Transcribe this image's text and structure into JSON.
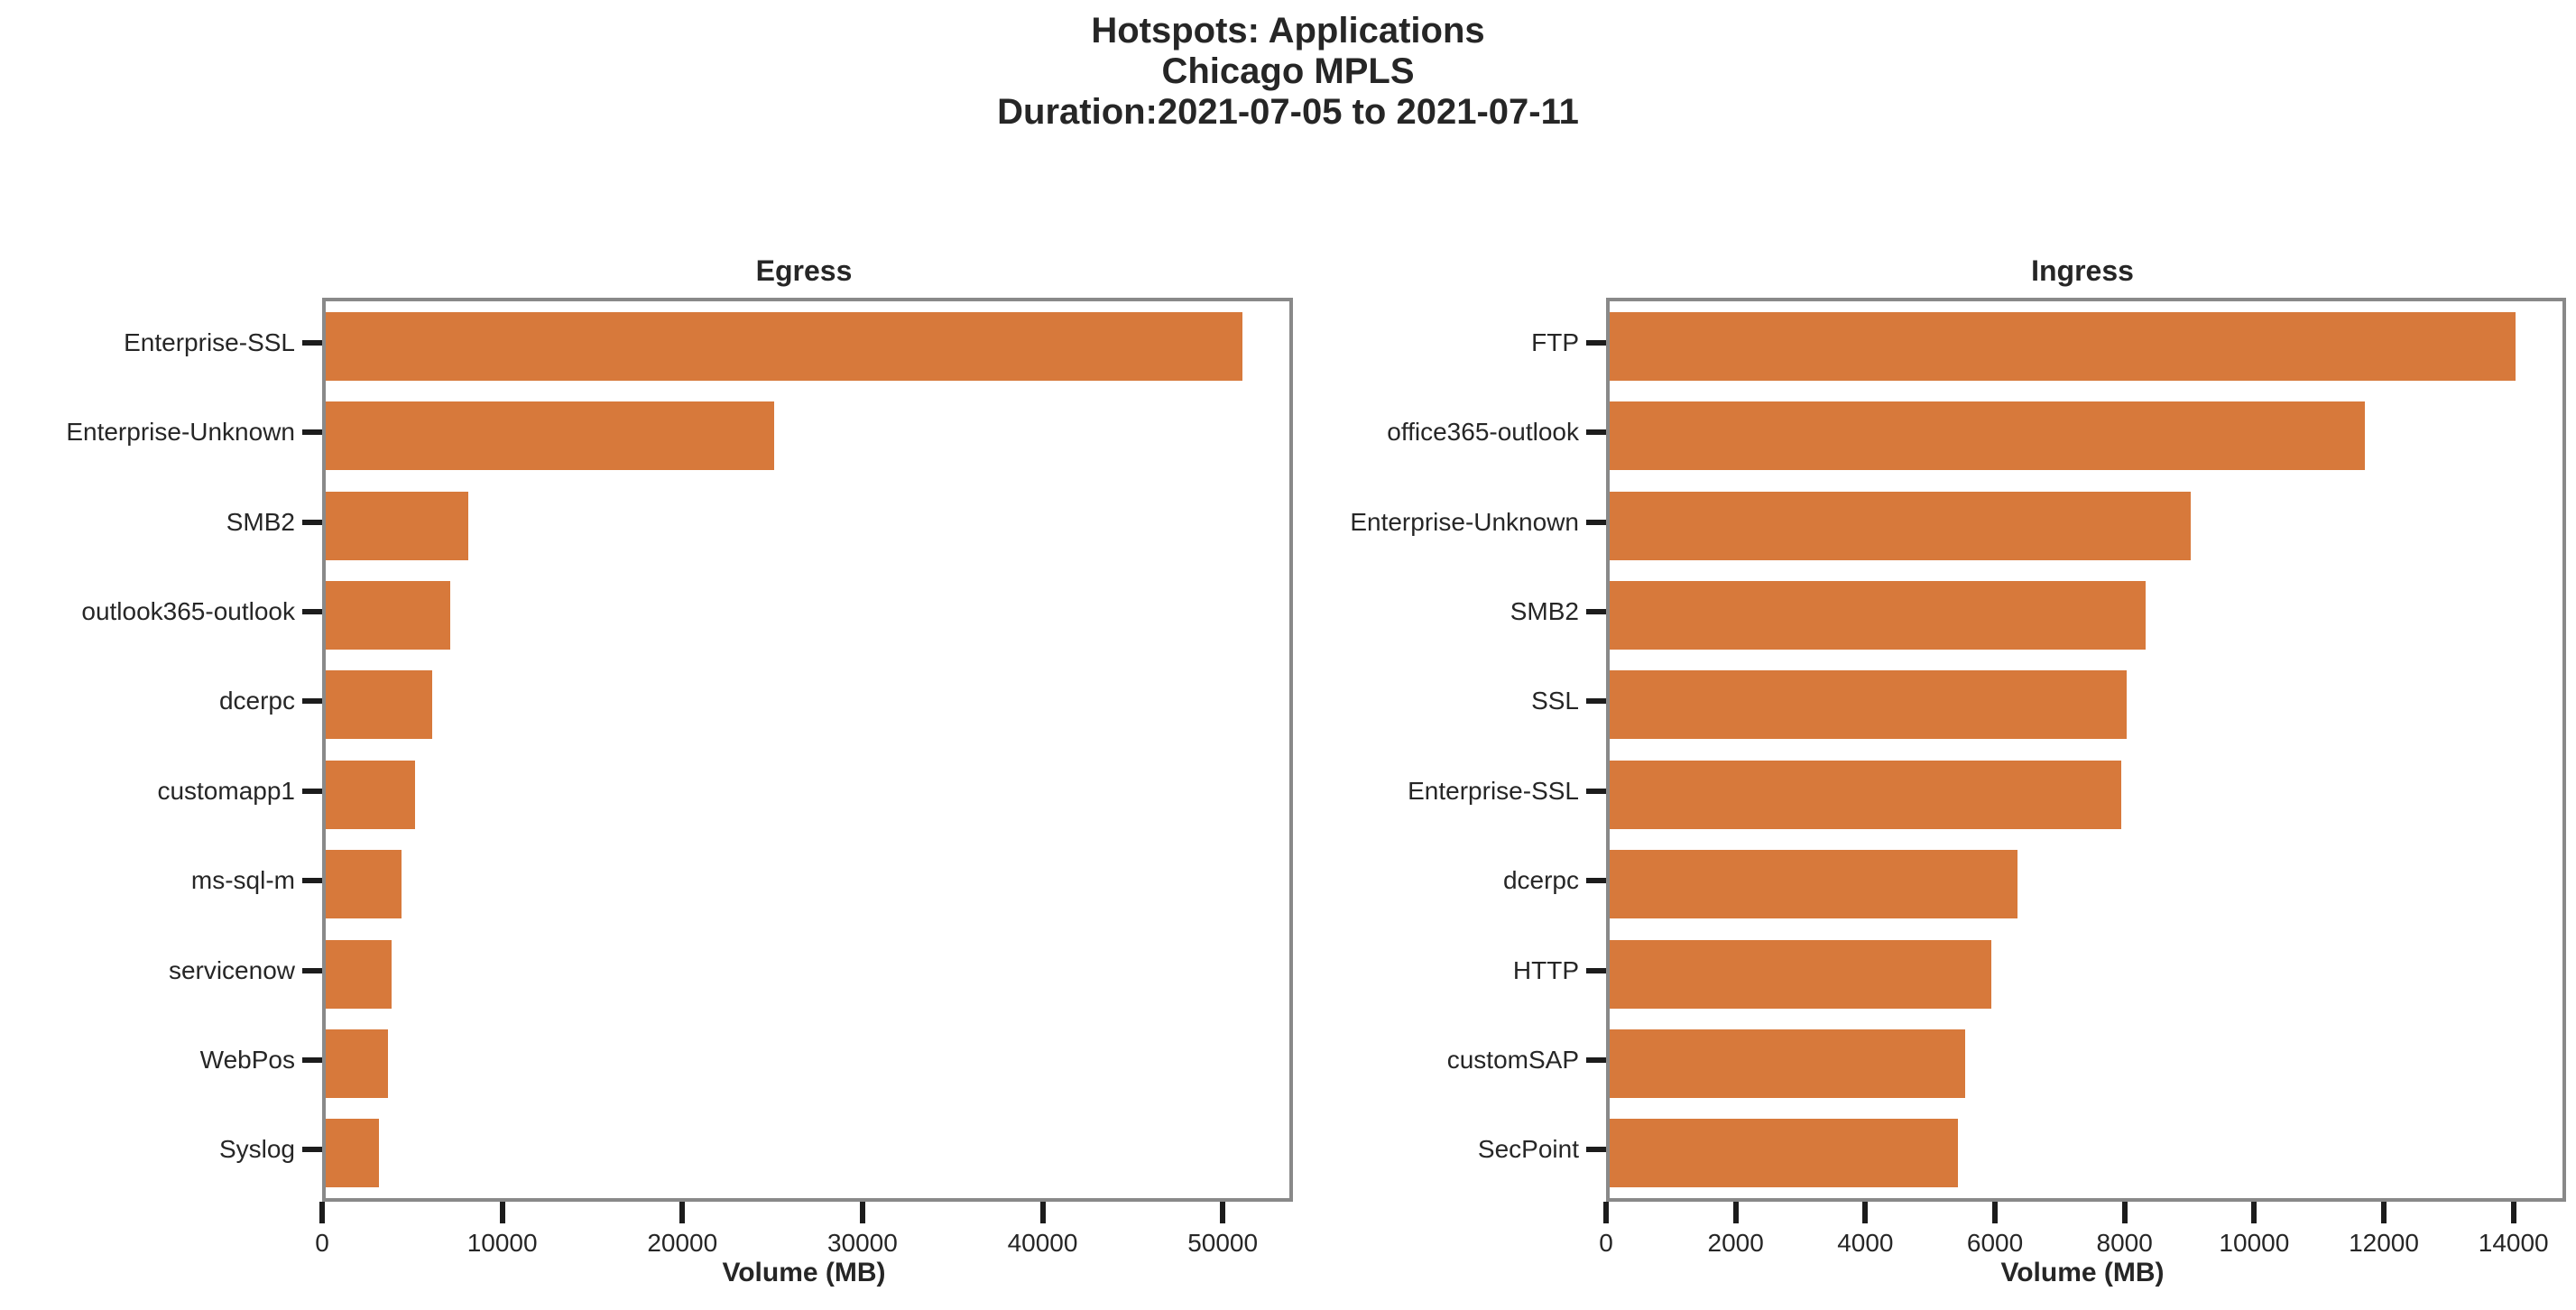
{
  "header": {
    "line1": "Hotspots: Applications",
    "line2": "Chicago MPLS",
    "line3": "Duration:2021-07-05 to 2021-07-11"
  },
  "colors": {
    "bar": "#d7793b",
    "spine": "#898989",
    "tick": "#1c1c1c",
    "text": "#262626"
  },
  "chart_data": [
    {
      "type": "bar",
      "orientation": "horizontal",
      "title": "Egress",
      "xlabel": "Volume (MB)",
      "categories": [
        "Enterprise-SSL",
        "Enterprise-Unknown",
        "SMB2",
        "outlook365-outlook",
        "dcerpc",
        "customapp1",
        "ms-sql-m",
        "servicenow",
        "WebPos",
        "Syslog"
      ],
      "values": [
        50900,
        24900,
        7900,
        6900,
        5900,
        4950,
        4200,
        3650,
        3450,
        2950
      ],
      "xlim": [
        0,
        53500
      ],
      "xticks": [
        0,
        10000,
        20000,
        30000,
        40000,
        50000
      ],
      "grid": false,
      "legend": null
    },
    {
      "type": "bar",
      "orientation": "horizontal",
      "title": "Ingress",
      "xlabel": "Volume (MB)",
      "categories": [
        "FTP",
        "office365-outlook",
        "Enterprise-Unknown",
        "SMB2",
        "SSL",
        "Enterprise-SSL",
        "dcerpc",
        "HTTP",
        "customSAP",
        "SecPoint"
      ],
      "values": [
        13980,
        11650,
        8970,
        8270,
        7980,
        7890,
        6290,
        5890,
        5480,
        5380
      ],
      "xlim": [
        0,
        14700
      ],
      "xticks": [
        0,
        2000,
        4000,
        6000,
        8000,
        10000,
        12000,
        14000
      ],
      "grid": false,
      "legend": null
    }
  ]
}
